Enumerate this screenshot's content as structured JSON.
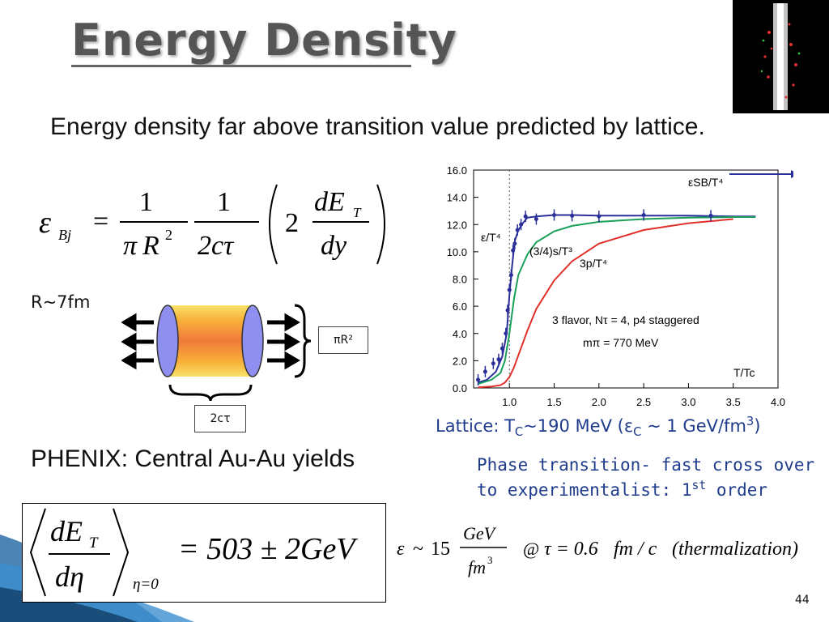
{
  "slide": {
    "title": "Energy Density",
    "subtitle": "Energy density far above transition value predicted by lattice.",
    "page_number": "44"
  },
  "bjorken_formula": {
    "epsilon": "ε",
    "subscript": "Bj",
    "equals": "=",
    "num1": "1",
    "den1_pi": "π",
    "den1_R": "R",
    "den1_exp": "2",
    "num2": "1",
    "den2": "2cτ",
    "coef": "2",
    "dET_d": "dE",
    "dET_sub": "T",
    "dy": "dy"
  },
  "diagram": {
    "radius_label": "R~7fm",
    "pi_r2_label": "πR²",
    "two_ctau_label": "2cτ"
  },
  "phenix": {
    "text": "PHENIX:  Central Au-Au yields"
  },
  "phenix_formula": {
    "dET": "dE",
    "dET_sub": "T",
    "deta": "dη",
    "subscript": "η=0",
    "result": "= 503 ± 2GeV"
  },
  "eps_formula": {
    "eps": "ε",
    "approx": "~",
    "num_15": "15",
    "gev": "GeV",
    "fm": "fm",
    "fm_exp": "3",
    "at": "@",
    "tau_expr": "τ = 0.6",
    "fmc": "fm / c",
    "therm": "(thermalization)"
  },
  "lattice": {
    "caption_prefix": "Lattice: T",
    "caption_sub": "C",
    "caption_mid": "~190 MeV  (ε",
    "caption_sub2": "C",
    "caption_end": " ~ 1 GeV/fm",
    "caption_sup": "3",
    "caption_close": ")"
  },
  "phase_note": {
    "line1": "Phase transition- fast cross over",
    "line2_pre": "to experimentalist: 1",
    "line2_sup": "st",
    "line2_post": " order"
  },
  "chart_data": {
    "type": "line",
    "title": "",
    "xlabel": "T/Tc",
    "ylabel": "",
    "xlim": [
      0.6,
      4.0
    ],
    "ylim": [
      0.0,
      16.0
    ],
    "x_ticks": [
      "1.0",
      "1.5",
      "2.0",
      "2.5",
      "3.0",
      "3.5",
      "4.0"
    ],
    "y_ticks": [
      "0.0",
      "2.0",
      "4.0",
      "6.0",
      "8.0",
      "10.0",
      "12.0",
      "14.0",
      "16.0"
    ],
    "annotations": {
      "sb": "εSB/T⁴",
      "eps": "ε/T⁴",
      "s": "(3/4)s/T³",
      "p": "3p/T⁴",
      "flavor": "3 flavor, Nτ = 4, p4 staggered",
      "mpi": "mπ = 770 MeV",
      "ttc": "T/Tc"
    },
    "sb_limit": 15.7,
    "tc_line": 1.0,
    "colors": {
      "eps": "#2a2f9a",
      "s": "#1aa05a",
      "p": "#e0302a",
      "sb": "#2a2f9a"
    },
    "series": [
      {
        "name": "ε/T⁴",
        "x": [
          0.65,
          0.75,
          0.85,
          0.92,
          0.97,
          1.0,
          1.03,
          1.06,
          1.1,
          1.15,
          1.2,
          1.3,
          1.5,
          1.7,
          2.0,
          2.5,
          3.0,
          3.5,
          3.75
        ],
        "values": [
          0.4,
          0.6,
          1.2,
          2.3,
          4.0,
          6.8,
          9.0,
          10.8,
          11.6,
          12.1,
          12.5,
          12.6,
          12.7,
          12.7,
          12.65,
          12.65,
          12.65,
          12.6,
          12.6
        ]
      },
      {
        "name": "(3/4)s/T³",
        "x": [
          0.65,
          0.8,
          0.9,
          0.95,
          1.0,
          1.05,
          1.1,
          1.2,
          1.3,
          1.5,
          1.7,
          2.0,
          2.5,
          3.0,
          3.5,
          3.75
        ],
        "values": [
          0.3,
          0.6,
          1.1,
          2.0,
          4.0,
          6.5,
          8.3,
          9.8,
          10.7,
          11.5,
          11.9,
          12.2,
          12.4,
          12.5,
          12.55,
          12.55
        ]
      },
      {
        "name": "3p/T⁴",
        "x": [
          0.65,
          0.8,
          0.9,
          0.95,
          1.0,
          1.05,
          1.1,
          1.2,
          1.3,
          1.5,
          1.7,
          2.0,
          2.5,
          3.0,
          3.5
        ],
        "values": [
          0.05,
          0.1,
          0.2,
          0.4,
          0.8,
          1.5,
          2.4,
          4.2,
          5.8,
          7.9,
          9.3,
          10.6,
          11.6,
          12.1,
          12.4
        ]
      },
      {
        "name": "ε data",
        "x": [
          0.65,
          0.73,
          0.82,
          0.88,
          0.92,
          0.96,
          0.98,
          1.0,
          1.02,
          1.04,
          1.06,
          1.09,
          1.13,
          1.18,
          1.3,
          1.5,
          1.7,
          2.0,
          2.5,
          3.25
        ],
        "values": [
          0.6,
          1.2,
          1.8,
          2.1,
          2.9,
          4.0,
          5.7,
          7.2,
          8.3,
          10.1,
          10.6,
          11.6,
          12.0,
          12.6,
          12.4,
          12.7,
          12.65,
          12.6,
          12.7,
          12.65
        ]
      }
    ]
  }
}
